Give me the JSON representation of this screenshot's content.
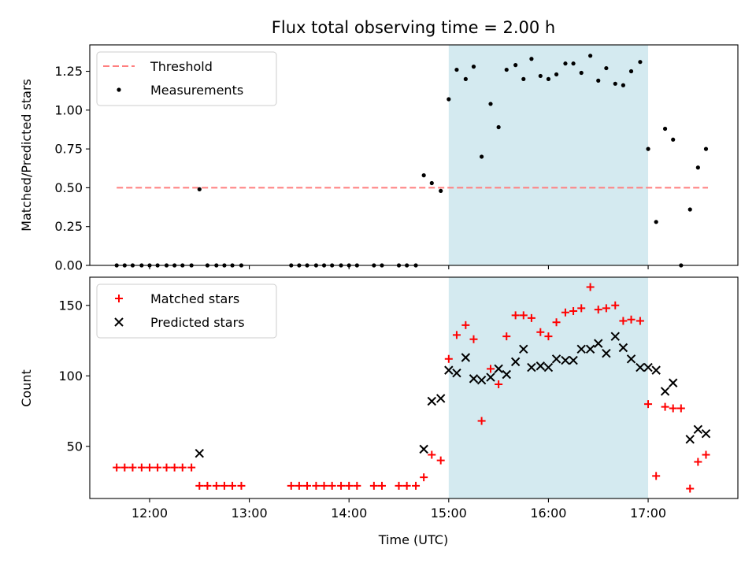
{
  "chart_data": [
    {
      "type": "scatter",
      "title": "Flux total observing time = 2.00 h",
      "ylabel": "Matched/Predicted stars",
      "xlabel": "",
      "xlim": [
        11.4,
        17.9
      ],
      "ylim": [
        0,
        1.42
      ],
      "yticks": [
        0,
        0.25,
        0.5,
        0.75,
        1.0,
        1.25
      ],
      "yticklabels": [
        "0.00",
        "0.25",
        "0.50",
        "0.75",
        "1.00",
        "1.25"
      ],
      "legend_placement": "upper-left",
      "highlight": {
        "x_start": 15.0,
        "x_end": 17.0,
        "color": "#d4eaf0"
      },
      "threshold": {
        "name": "Threshold",
        "value": 0.5,
        "x_range": [
          11.67,
          17.6
        ],
        "color": "#ff7f7f"
      },
      "series": [
        {
          "name": "Measurements",
          "marker": "dot",
          "color": "#000000",
          "points": [
            [
              11.67,
              0
            ],
            [
              11.75,
              0
            ],
            [
              11.83,
              0
            ],
            [
              11.92,
              0
            ],
            [
              12.0,
              0
            ],
            [
              12.08,
              0
            ],
            [
              12.17,
              0
            ],
            [
              12.25,
              0
            ],
            [
              12.33,
              0
            ],
            [
              12.42,
              0
            ],
            [
              12.5,
              0.49
            ],
            [
              12.58,
              0
            ],
            [
              12.67,
              0
            ],
            [
              12.75,
              0
            ],
            [
              12.83,
              0
            ],
            [
              12.92,
              0
            ],
            [
              13.42,
              0
            ],
            [
              13.5,
              0
            ],
            [
              13.58,
              0
            ],
            [
              13.67,
              0
            ],
            [
              13.75,
              0
            ],
            [
              13.83,
              0
            ],
            [
              13.92,
              0
            ],
            [
              14.0,
              0
            ],
            [
              14.08,
              0
            ],
            [
              14.25,
              0
            ],
            [
              14.33,
              0
            ],
            [
              14.5,
              0
            ],
            [
              14.58,
              0
            ],
            [
              14.67,
              0
            ],
            [
              14.75,
              0.58
            ],
            [
              14.83,
              0.53
            ],
            [
              14.92,
              0.48
            ],
            [
              15.0,
              1.07
            ],
            [
              15.08,
              1.26
            ],
            [
              15.17,
              1.2
            ],
            [
              15.25,
              1.28
            ],
            [
              15.33,
              0.7
            ],
            [
              15.42,
              1.04
            ],
            [
              15.5,
              0.89
            ],
            [
              15.58,
              1.26
            ],
            [
              15.67,
              1.29
            ],
            [
              15.75,
              1.2
            ],
            [
              15.83,
              1.33
            ],
            [
              15.92,
              1.22
            ],
            [
              16.0,
              1.2
            ],
            [
              16.08,
              1.23
            ],
            [
              16.17,
              1.3
            ],
            [
              16.25,
              1.3
            ],
            [
              16.33,
              1.24
            ],
            [
              16.42,
              1.35
            ],
            [
              16.5,
              1.19
            ],
            [
              16.58,
              1.27
            ],
            [
              16.67,
              1.17
            ],
            [
              16.75,
              1.16
            ],
            [
              16.83,
              1.25
            ],
            [
              16.92,
              1.31
            ],
            [
              17.0,
              0.75
            ],
            [
              17.08,
              0.28
            ],
            [
              17.17,
              0.88
            ],
            [
              17.25,
              0.81
            ],
            [
              17.33,
              0
            ],
            [
              17.42,
              0.36
            ],
            [
              17.5,
              0.63
            ],
            [
              17.58,
              0.75
            ]
          ]
        }
      ]
    },
    {
      "type": "scatter",
      "title": "",
      "ylabel": "Count",
      "xlabel": "Time (UTC)",
      "xlim": [
        11.4,
        17.9
      ],
      "ylim": [
        13,
        170
      ],
      "xticks": [
        12,
        13,
        14,
        15,
        16,
        17
      ],
      "xticklabels": [
        "12:00",
        "13:00",
        "14:00",
        "15:00",
        "16:00",
        "17:00"
      ],
      "yticks": [
        50,
        100,
        150
      ],
      "yticklabels": [
        "50",
        "100",
        "150"
      ],
      "legend_placement": "upper-left",
      "highlight": {
        "x_start": 15.0,
        "x_end": 17.0,
        "color": "#d4eaf0"
      },
      "series": [
        {
          "name": "Matched stars",
          "marker": "plus",
          "color": "#ff0000",
          "points": [
            [
              11.67,
              35
            ],
            [
              11.75,
              35
            ],
            [
              11.83,
              35
            ],
            [
              11.92,
              35
            ],
            [
              12.0,
              35
            ],
            [
              12.08,
              35
            ],
            [
              12.17,
              35
            ],
            [
              12.25,
              35
            ],
            [
              12.33,
              35
            ],
            [
              12.42,
              35
            ],
            [
              12.5,
              22
            ],
            [
              12.58,
              22
            ],
            [
              12.67,
              22
            ],
            [
              12.75,
              22
            ],
            [
              12.83,
              22
            ],
            [
              12.92,
              22
            ],
            [
              13.42,
              22
            ],
            [
              13.5,
              22
            ],
            [
              13.58,
              22
            ],
            [
              13.67,
              22
            ],
            [
              13.75,
              22
            ],
            [
              13.83,
              22
            ],
            [
              13.92,
              22
            ],
            [
              14.0,
              22
            ],
            [
              14.08,
              22
            ],
            [
              14.25,
              22
            ],
            [
              14.33,
              22
            ],
            [
              14.5,
              22
            ],
            [
              14.58,
              22
            ],
            [
              14.67,
              22
            ],
            [
              14.75,
              28
            ],
            [
              14.83,
              44
            ],
            [
              14.92,
              40
            ],
            [
              15.0,
              112
            ],
            [
              15.08,
              129
            ],
            [
              15.17,
              136
            ],
            [
              15.25,
              126
            ],
            [
              15.33,
              68
            ],
            [
              15.42,
              105
            ],
            [
              15.5,
              94
            ],
            [
              15.58,
              128
            ],
            [
              15.67,
              143
            ],
            [
              15.75,
              143
            ],
            [
              15.83,
              141
            ],
            [
              15.92,
              131
            ],
            [
              16.0,
              128
            ],
            [
              16.08,
              138
            ],
            [
              16.17,
              145
            ],
            [
              16.25,
              146
            ],
            [
              16.33,
              148
            ],
            [
              16.42,
              163
            ],
            [
              16.5,
              147
            ],
            [
              16.58,
              148
            ],
            [
              16.67,
              150
            ],
            [
              16.75,
              139
            ],
            [
              16.83,
              140
            ],
            [
              16.92,
              139
            ],
            [
              17.0,
              80
            ],
            [
              17.08,
              29
            ],
            [
              17.17,
              78
            ],
            [
              17.25,
              77
            ],
            [
              17.33,
              77
            ],
            [
              17.42,
              20
            ],
            [
              17.5,
              39
            ],
            [
              17.58,
              44
            ]
          ]
        },
        {
          "name": "Predicted stars",
          "marker": "x",
          "color": "#000000",
          "points": [
            [
              12.5,
              45
            ],
            [
              14.75,
              48
            ],
            [
              14.83,
              82
            ],
            [
              14.92,
              84
            ],
            [
              15.0,
              104
            ],
            [
              15.08,
              102
            ],
            [
              15.17,
              113
            ],
            [
              15.25,
              98
            ],
            [
              15.33,
              97
            ],
            [
              15.42,
              99
            ],
            [
              15.5,
              105
            ],
            [
              15.58,
              101
            ],
            [
              15.67,
              110
            ],
            [
              15.75,
              119
            ],
            [
              15.83,
              106
            ],
            [
              15.92,
              107
            ],
            [
              16.0,
              106
            ],
            [
              16.08,
              112
            ],
            [
              16.17,
              111
            ],
            [
              16.25,
              111
            ],
            [
              16.33,
              119
            ],
            [
              16.42,
              119
            ],
            [
              16.5,
              123
            ],
            [
              16.58,
              116
            ],
            [
              16.67,
              128
            ],
            [
              16.75,
              120
            ],
            [
              16.83,
              112
            ],
            [
              16.92,
              106
            ],
            [
              17.0,
              106
            ],
            [
              17.08,
              104
            ],
            [
              17.17,
              89
            ],
            [
              17.25,
              95
            ],
            [
              17.42,
              55
            ],
            [
              17.5,
              62
            ],
            [
              17.58,
              59
            ]
          ]
        }
      ]
    }
  ]
}
